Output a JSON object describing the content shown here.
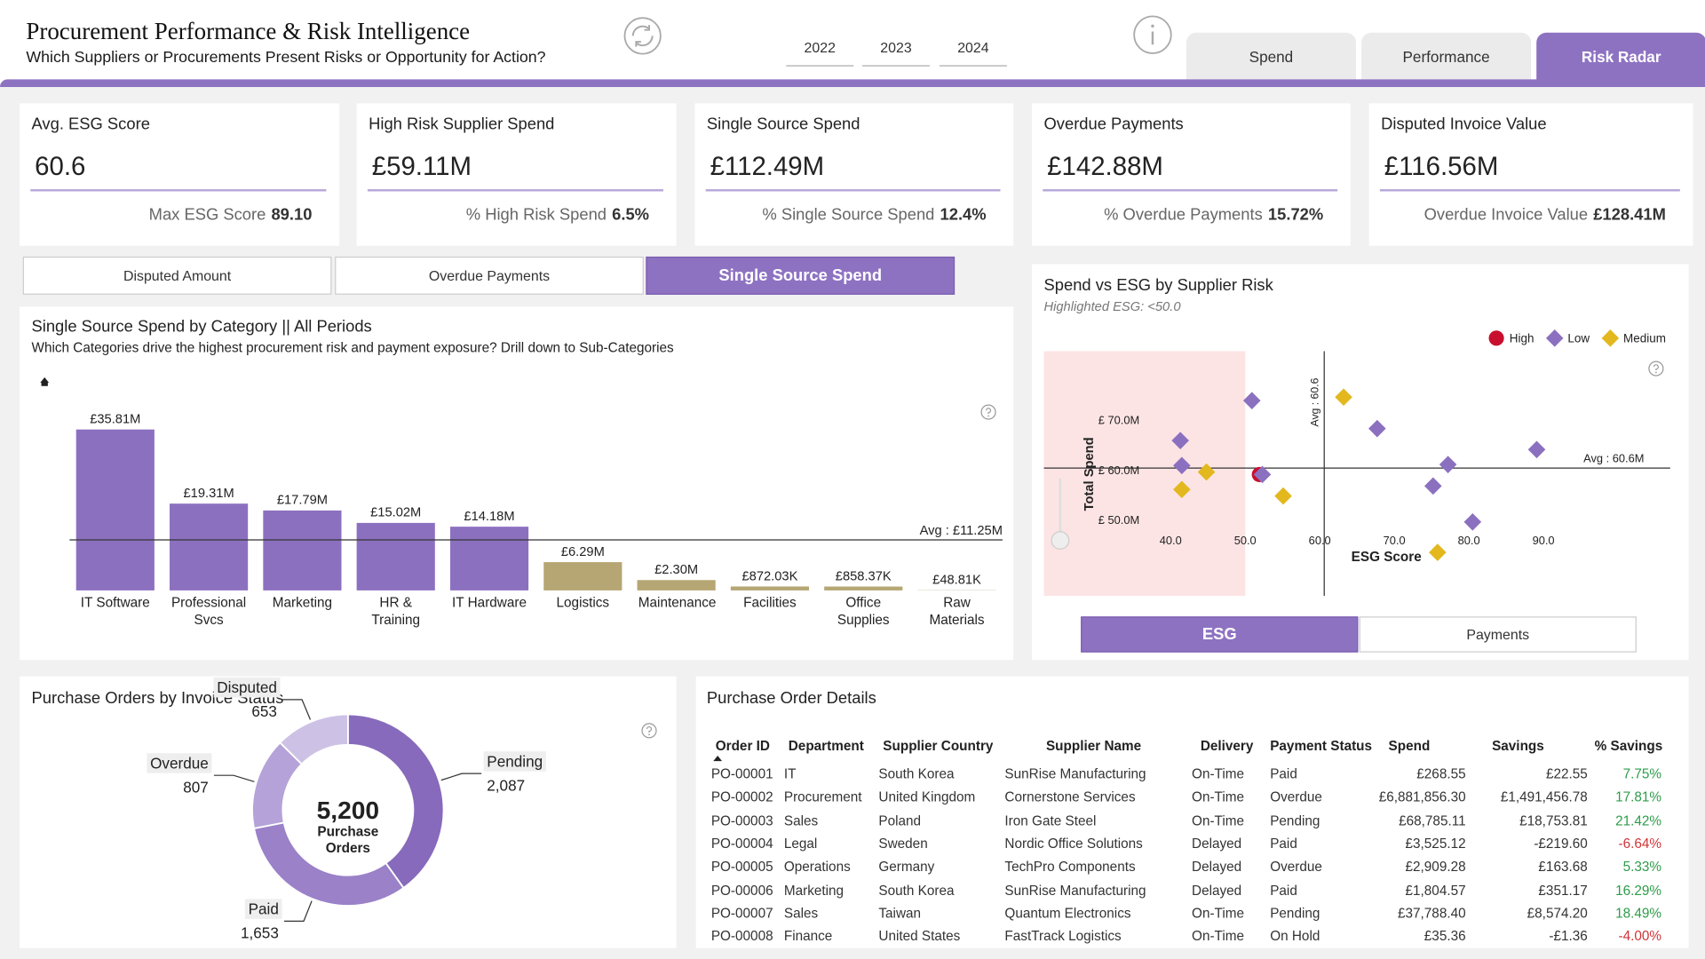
{
  "header": {
    "title": "Procurement Performance & Risk Intelligence",
    "subtitle": "Which Suppliers or Procurements Present Risks or Opportunity for Action?",
    "years": [
      "2022",
      "2023",
      "2024"
    ],
    "tabs": [
      "Spend",
      "Performance",
      "Risk Radar"
    ],
    "active_tab": 2
  },
  "kpis": [
    {
      "title": "Avg. ESG Score",
      "value": "60.6",
      "sub_label": "Max ESG Score",
      "sub_value": "89.10"
    },
    {
      "title": "High Risk Supplier Spend",
      "value": "£59.11M",
      "sub_label": "% High Risk Spend",
      "sub_value": "6.5%"
    },
    {
      "title": "Single Source Spend",
      "value": "£112.49M",
      "sub_label": "% Single Source Spend",
      "sub_value": "12.4%"
    },
    {
      "title": "Overdue Payments",
      "value": "£142.88M",
      "sub_label": "% Overdue Payments",
      "sub_value": "15.72%"
    },
    {
      "title": "Disputed Invoice Value",
      "value": "£116.56M",
      "sub_label": "Overdue Invoice Value",
      "sub_value": "£128.41M"
    }
  ],
  "view_buttons": {
    "labels": [
      "Disputed Amount",
      "Overdue Payments",
      "Single Source Spend"
    ],
    "active": 2
  },
  "chart_data": [
    {
      "type": "bar",
      "title": "Single Source Spend by Category || All Periods",
      "subtitle": "Which Categories drive the highest procurement risk and payment exposure? Drill down to Sub-Categories",
      "categories": [
        "IT Software",
        "Professional Svcs",
        "Marketing",
        "HR & Training",
        "IT Hardware",
        "Logistics",
        "Maintenance",
        "Facilities",
        "Office Supplies",
        "Raw Materials"
      ],
      "values": [
        35.81,
        19.31,
        17.79,
        15.02,
        14.18,
        6.29,
        2.3,
        0.87203,
        0.85837,
        0.04881
      ],
      "value_labels": [
        "£35.81M",
        "£19.31M",
        "£17.79M",
        "£15.02M",
        "£14.18M",
        "£6.29M",
        "£2.30M",
        "£872.03K",
        "£858.37K",
        "£48.81K"
      ],
      "colors": [
        "#8c70c0",
        "#8c70c0",
        "#8c70c0",
        "#8c70c0",
        "#8c70c0",
        "#b5a673",
        "#b5a673",
        "#b5a673",
        "#b5a673",
        "#b5a673"
      ],
      "reference_line": {
        "value": 11.25,
        "label": "Avg : £11.25M"
      }
    },
    {
      "type": "scatter",
      "title": "Spend vs ESG by Supplier Risk",
      "subtitle": "Highlighted ESG: <50.0",
      "x_label": "ESG Score",
      "y_label": "Total Spend",
      "xlim": [
        23,
        107
      ],
      "ylim": [
        35,
        84
      ],
      "xticks": [
        {
          "value": 40,
          "label": "40.0"
        },
        {
          "value": 50,
          "label": "50.0"
        },
        {
          "value": 60,
          "label": "60.0"
        },
        {
          "value": 70,
          "label": "70.0"
        },
        {
          "value": 80,
          "label": "80.0"
        },
        {
          "value": 90,
          "label": "90.0"
        }
      ],
      "yticks": [
        {
          "value": 50,
          "label": "£ 50.0M"
        },
        {
          "value": 60,
          "label": "£ 60.0M"
        },
        {
          "value": 70,
          "label": "£ 70.0M"
        }
      ],
      "reference_lines": [
        {
          "axis": "x",
          "value": 60.6,
          "label": "Avg : 60.6"
        },
        {
          "axis": "y",
          "value": 60.6,
          "label": "Avg : 60.6M"
        }
      ],
      "highlight": {
        "below_x": 50,
        "color": "#fde4e4"
      },
      "legend": "top-right",
      "series": [
        {
          "name": "High",
          "color": "#c8102e",
          "marker": "circle",
          "x": [
            51.9
          ],
          "values": [
            59.3
          ]
        },
        {
          "name": "Low",
          "color": "#8c70c0",
          "marker": "diamond",
          "x": [
            50.9,
            41.3,
            41.5,
            52.3,
            67.7,
            77.2,
            75.2,
            89.1,
            80.5
          ],
          "values": [
            74.1,
            66.1,
            61.1,
            59.3,
            68.5,
            61.3,
            57.0,
            64.3,
            49.8
          ]
        },
        {
          "name": "Medium",
          "color": "#e2b81e",
          "marker": "diamond",
          "x": [
            63.2,
            44.8,
            41.5,
            55.1,
            75.8
          ],
          "values": [
            74.8,
            59.8,
            56.3,
            55.0,
            43.7
          ]
        }
      ],
      "toggles": [
        "ESG",
        "Payments"
      ],
      "active_toggle": 0
    },
    {
      "type": "pie",
      "title": "Purchase Orders by Invoice Status",
      "donut": true,
      "categories": [
        "Pending",
        "Paid",
        "Overdue",
        "Disputed"
      ],
      "values": [
        2087,
        1653,
        807,
        653
      ],
      "value_labels": [
        "2,087",
        "1,653",
        "807",
        "653"
      ],
      "colors": [
        "#876abb",
        "#9a81c8",
        "#b4a2d8",
        "#cdc1e5"
      ],
      "center_value": "5,200",
      "center_text": "Purchase Orders"
    }
  ],
  "table": {
    "title": "Purchase Order Details",
    "columns": [
      "Order ID",
      "Department",
      "Supplier Country",
      "Supplier Name",
      "Delivery",
      "Payment Status",
      "Spend",
      "Savings",
      "% Savings"
    ],
    "rows": [
      [
        "PO-00001",
        "IT",
        "South Korea",
        "SunRise Manufacturing",
        "On-Time",
        "Paid",
        "£268.55",
        "£22.55",
        "7.75%"
      ],
      [
        "PO-00002",
        "Procurement",
        "United Kingdom",
        "Cornerstone Services",
        "On-Time",
        "Overdue",
        "£6,881,856.30",
        "£1,491,456.78",
        "17.81%"
      ],
      [
        "PO-00003",
        "Sales",
        "Poland",
        "Iron Gate Steel",
        "On-Time",
        "Pending",
        "£68,785.11",
        "£18,753.81",
        "21.42%"
      ],
      [
        "PO-00004",
        "Legal",
        "Sweden",
        "Nordic Office Solutions",
        "Delayed",
        "Paid",
        "£3,525.12",
        "-£219.60",
        "-6.64%"
      ],
      [
        "PO-00005",
        "Operations",
        "Germany",
        "TechPro Components",
        "Delayed",
        "Overdue",
        "£2,909.28",
        "£163.68",
        "5.33%"
      ],
      [
        "PO-00006",
        "Marketing",
        "South Korea",
        "SunRise Manufacturing",
        "Delayed",
        "Paid",
        "£1,804.57",
        "£351.17",
        "16.29%"
      ],
      [
        "PO-00007",
        "Sales",
        "Taiwan",
        "Quantum Electronics",
        "On-Time",
        "Pending",
        "£37,788.40",
        "£8,574.20",
        "18.49%"
      ],
      [
        "PO-00008",
        "Finance",
        "United States",
        "FastTrack Logistics",
        "On-Time",
        "On Hold",
        "£35.36",
        "-£1.36",
        "-4.00%"
      ]
    ]
  }
}
